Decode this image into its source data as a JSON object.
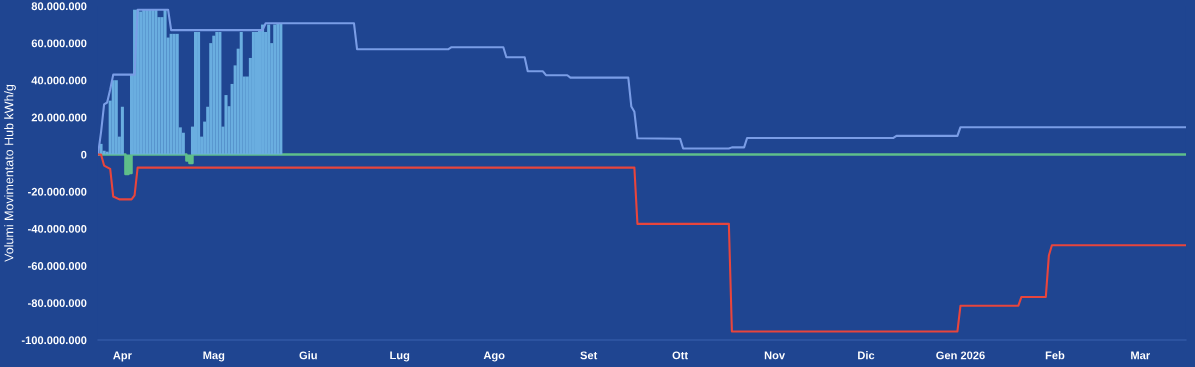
{
  "chart_data": {
    "type": "bar",
    "ylabel": "Volumi Movimentato Hub kWh/g",
    "xlim": [
      "2025-03-24",
      "2026-03-16"
    ],
    "xticks": [
      {
        "value": "2025-04-01",
        "label": "Apr"
      },
      {
        "value": "2025-05-01",
        "label": "Mag"
      },
      {
        "value": "2025-06-01",
        "label": "Giu"
      },
      {
        "value": "2025-07-01",
        "label": "Lug"
      },
      {
        "value": "2025-08-01",
        "label": "Ago"
      },
      {
        "value": "2025-09-01",
        "label": "Set"
      },
      {
        "value": "2025-10-01",
        "label": "Ott"
      },
      {
        "value": "2025-11-01",
        "label": "Nov"
      },
      {
        "value": "2025-12-01",
        "label": "Dic"
      },
      {
        "value": "2026-01-01",
        "label": "Gen 2026"
      },
      {
        "value": "2026-02-01",
        "label": "Feb"
      },
      {
        "value": "2026-03-01",
        "label": "Mar"
      }
    ],
    "ylim": [
      -100000000,
      80000000
    ],
    "yticks": [
      {
        "value": 80000000,
        "label": "80.000.000"
      },
      {
        "value": 60000000,
        "label": "60.000.000"
      },
      {
        "value": 40000000,
        "label": "40.000.000"
      },
      {
        "value": 20000000,
        "label": "20.000.000"
      },
      0,
      {
        "value": -20000000,
        "label": "-20.000.000"
      },
      {
        "value": -40000000,
        "label": "-40.000.000"
      },
      {
        "value": -60000000,
        "label": "-60.000.000"
      },
      {
        "value": -80000000,
        "label": "-80.000.000"
      },
      {
        "value": -100000000,
        "label": "-100.000.000"
      }
    ],
    "grid": false,
    "legend": false,
    "series": [
      {
        "type": "area",
        "color": "#5fbf8a",
        "x": [
          "2025-03-24",
          "2025-04-02",
          "2025-04-03",
          "2025-04-04",
          "2025-04-22",
          "2025-04-23",
          "2025-04-24",
          "2026-03-16"
        ],
        "values": [
          0,
          -10500000,
          -10000000,
          0,
          -3300000,
          -4600000,
          0,
          0
        ]
      },
      {
        "color": "#6aaee0",
        "x": [
          "2025-03-25",
          "2025-03-26",
          "2025-03-27",
          "2025-03-28",
          "2025-03-29",
          "2025-03-30",
          "2025-03-31",
          "2025-04-01",
          "2025-04-02",
          "2025-04-03",
          "2025-04-04",
          "2025-04-05",
          "2025-04-06",
          "2025-04-07",
          "2025-04-08",
          "2025-04-09",
          "2025-04-10",
          "2025-04-11",
          "2025-04-12",
          "2025-04-13",
          "2025-04-14",
          "2025-04-15",
          "2025-04-16",
          "2025-04-17",
          "2025-04-18",
          "2025-04-19",
          "2025-04-20",
          "2025-04-21",
          "2025-04-22",
          "2025-04-23",
          "2025-04-24",
          "2025-04-25",
          "2025-04-26",
          "2025-04-27",
          "2025-04-28",
          "2025-04-29",
          "2025-04-30",
          "2025-05-01",
          "2025-05-02",
          "2025-05-03",
          "2025-05-04",
          "2025-05-05",
          "2025-05-06",
          "2025-05-07",
          "2025-05-08",
          "2025-05-09",
          "2025-05-10",
          "2025-05-11",
          "2025-05-12",
          "2025-05-13",
          "2025-05-14",
          "2025-05-15",
          "2025-05-16",
          "2025-05-17",
          "2025-05-18",
          "2025-05-19",
          "2025-05-20",
          "2025-05-21",
          "2025-05-22",
          "2025-05-23"
        ],
        "values": [
          5700000,
          2000000,
          1500000,
          29000000,
          40000000,
          40000000,
          9600000,
          25700000,
          0,
          0,
          43000000,
          78000000,
          78000000,
          77000000,
          78000000,
          78000000,
          78000000,
          78000000,
          78000000,
          74000000,
          74000000,
          78000000,
          63000000,
          65000000,
          65000000,
          65000000,
          14600000,
          11700000,
          0,
          0,
          15000000,
          66000000,
          66000000,
          9600000,
          17700000,
          25700000,
          60000000,
          64000000,
          66000000,
          66000000,
          15000000,
          32000000,
          26000000,
          38000000,
          48000000,
          57000000,
          66000000,
          42000000,
          42000000,
          52000000,
          66000000,
          66000000,
          67000000,
          70000000,
          66000000,
          70000000,
          60000000,
          70000000,
          70700000,
          70700000
        ]
      },
      {
        "type": "line",
        "color": "#7a9de6",
        "x": [
          "2025-03-24",
          "2025-03-25",
          "2025-03-26",
          "2025-03-27",
          "2025-03-28",
          "2025-03-29",
          "2025-04-05",
          "2025-04-06",
          "2025-04-16",
          "2025-04-17",
          "2025-05-17",
          "2025-05-18",
          "2025-06-16",
          "2025-06-17",
          "2025-07-17",
          "2025-07-18",
          "2025-08-04",
          "2025-08-05",
          "2025-08-11",
          "2025-08-12",
          "2025-08-17",
          "2025-08-18",
          "2025-08-25",
          "2025-08-26",
          "2025-09-14",
          "2025-09-15",
          "2025-09-16",
          "2025-09-17",
          "2025-10-01",
          "2025-10-02",
          "2025-10-17",
          "2025-10-18",
          "2025-10-22",
          "2025-10-23",
          "2025-12-10",
          "2025-12-11",
          "2025-12-31",
          "2026-01-01",
          "2026-03-16"
        ],
        "values": [
          0,
          12000000,
          27000000,
          28000000,
          35000000,
          43000000,
          43000000,
          78000000,
          78000000,
          67000000,
          67000000,
          70700000,
          70700000,
          56700000,
          56700000,
          57800000,
          57800000,
          52400000,
          52400000,
          44800000,
          44800000,
          42700000,
          42700000,
          41400000,
          41400000,
          25800000,
          23000000,
          8700000,
          8500000,
          3200000,
          3200000,
          3800000,
          3800000,
          8900000,
          8900000,
          10000000,
          10000000,
          14700000,
          14700000
        ]
      },
      {
        "type": "line",
        "color": "#e8453c",
        "x": [
          "2025-03-24",
          "2025-03-25",
          "2025-03-26",
          "2025-03-28",
          "2025-03-29",
          "2025-03-31",
          "2025-04-04",
          "2025-04-05",
          "2025-04-06",
          "2025-09-16",
          "2025-09-17",
          "2025-10-17",
          "2025-10-18",
          "2025-12-31",
          "2026-01-01",
          "2026-01-20",
          "2026-01-21",
          "2026-01-29",
          "2026-01-30",
          "2026-01-31",
          "2026-03-16"
        ],
        "values": [
          0,
          0,
          -6000000,
          -7800000,
          -22700000,
          -24200000,
          -24200000,
          -22000000,
          -7100000,
          -7100000,
          -37400000,
          -37400000,
          -95400000,
          -95400000,
          -81500000,
          -81500000,
          -76800000,
          -76800000,
          -54500000,
          -48900000,
          -48900000
        ]
      }
    ]
  }
}
